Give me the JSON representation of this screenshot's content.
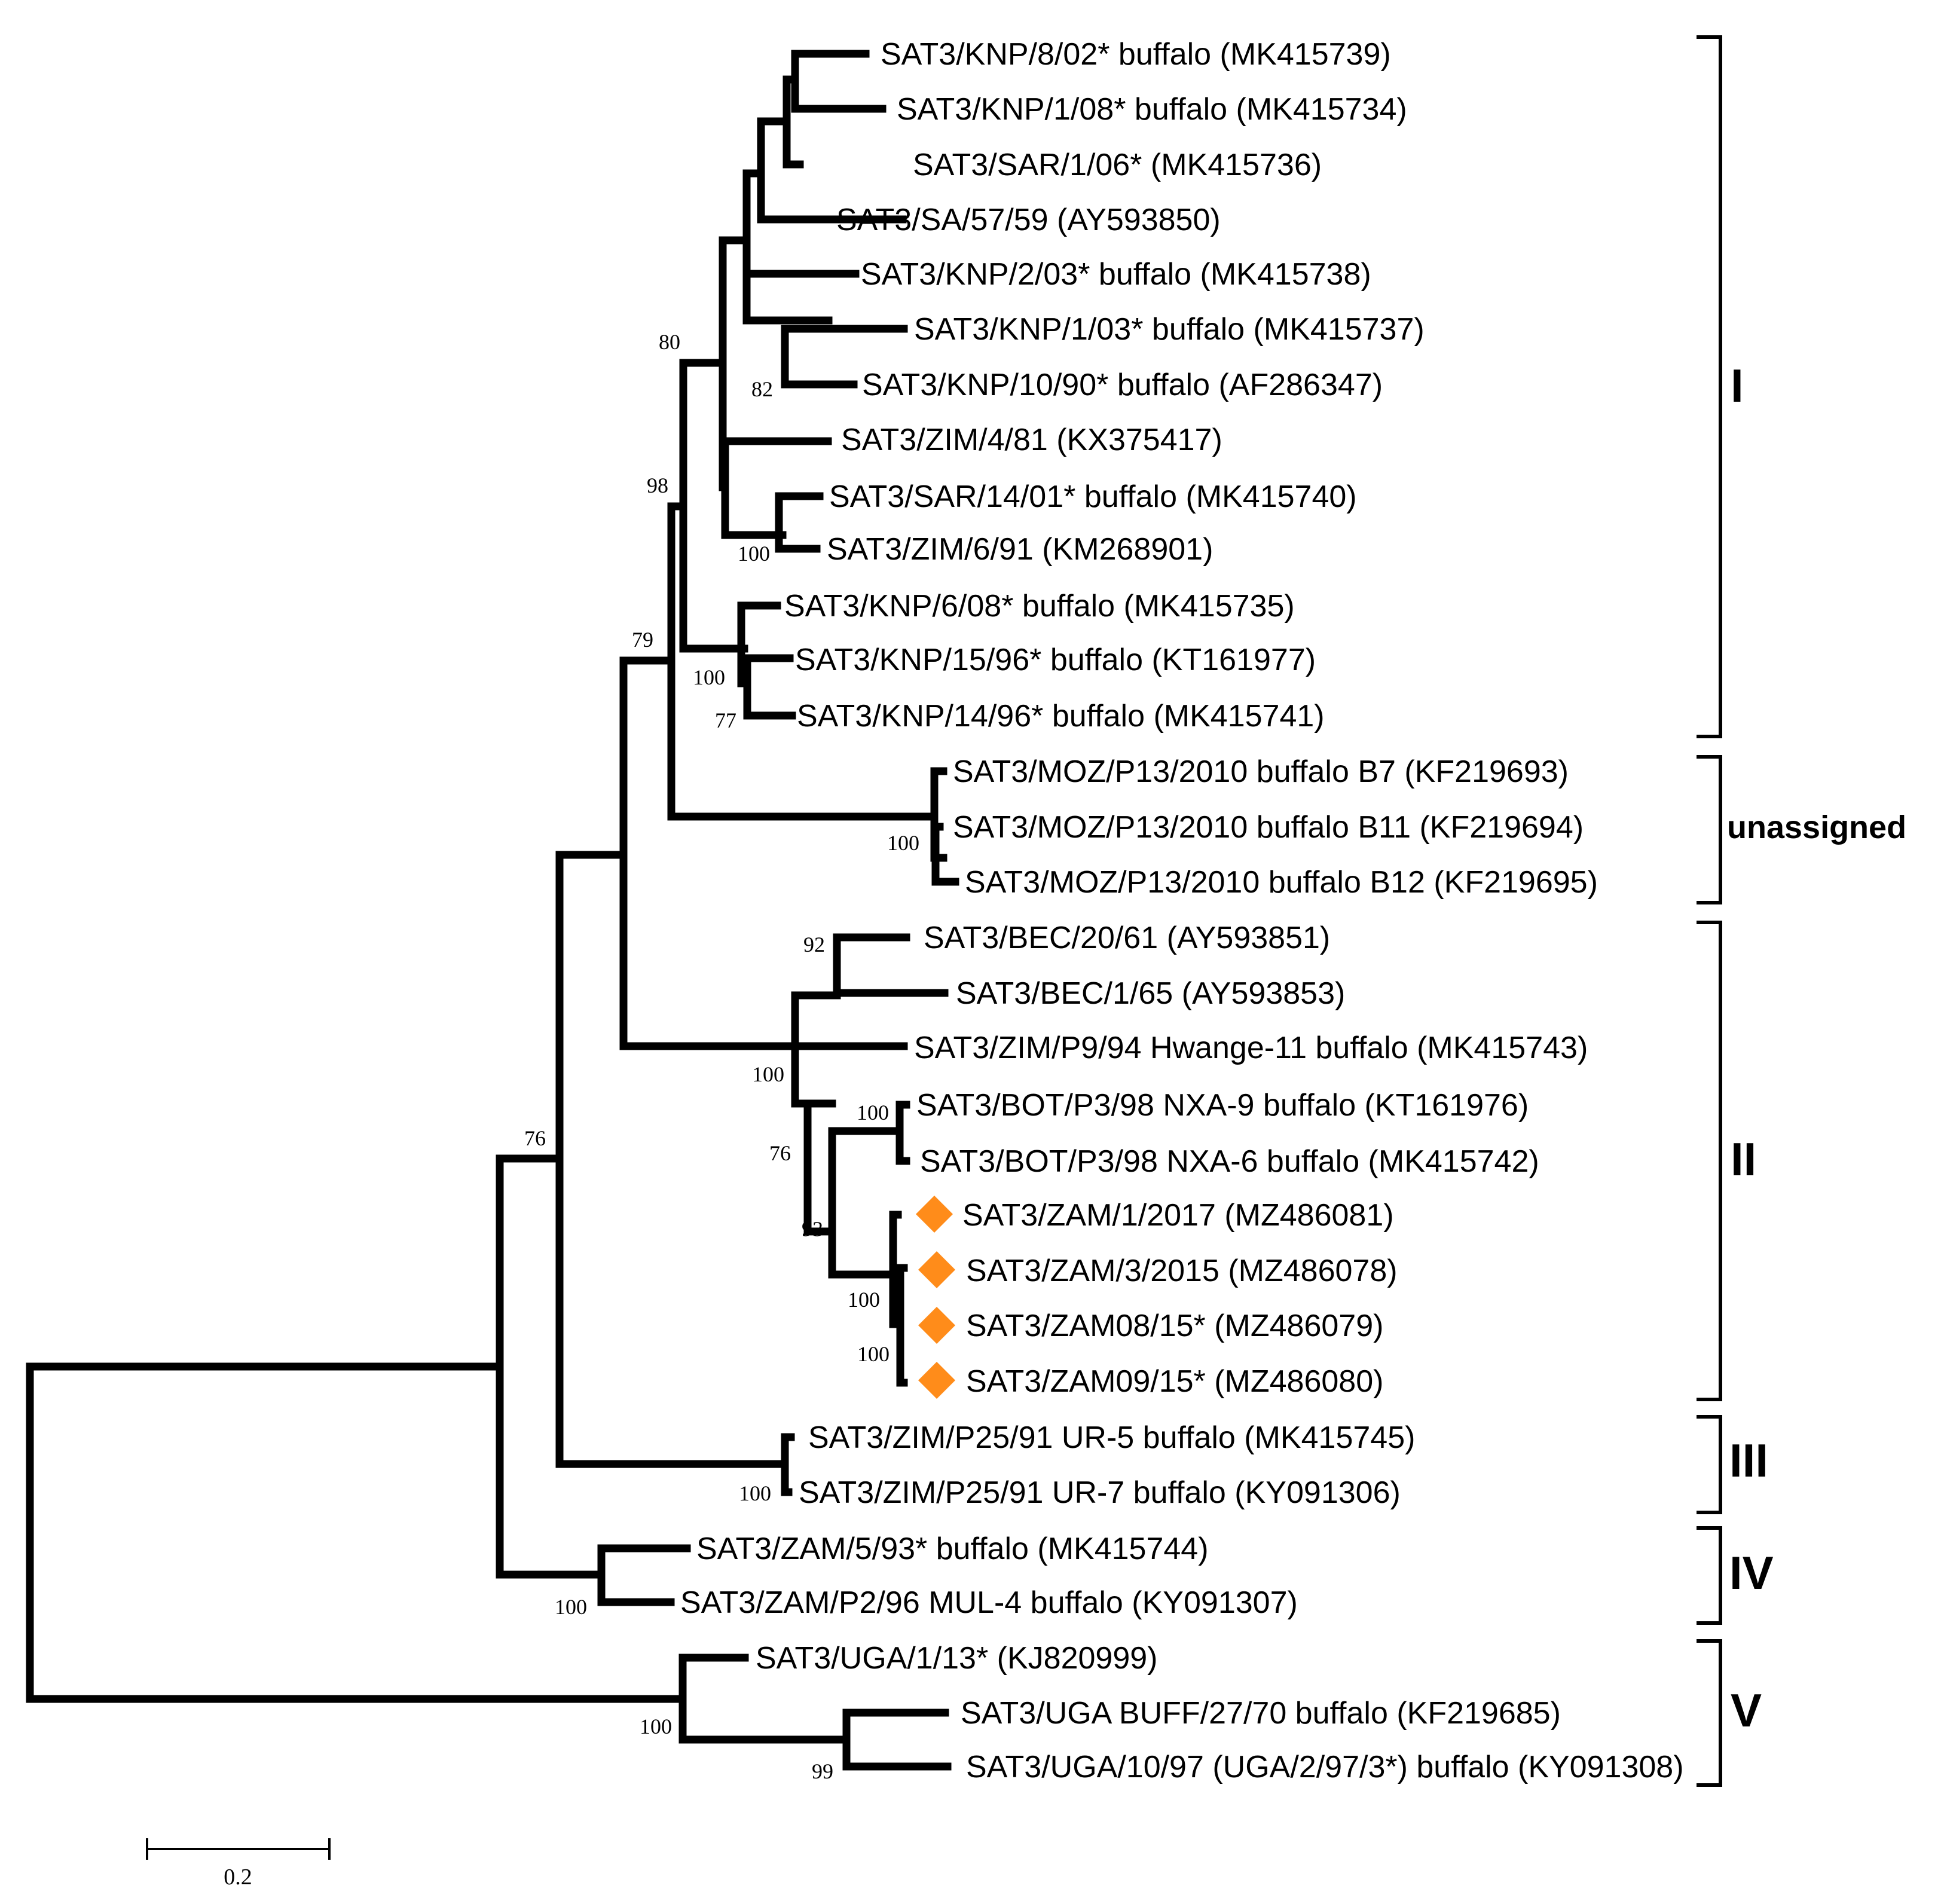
{
  "taxa": {
    "t1": "SAT3/KNP/8/02* buffalo (MK415739)",
    "t2": "SAT3/KNP/1/08* buffalo (MK415734)",
    "t3": "SAT3/SAR/1/06* (MK415736)",
    "t4": "SAT3/SA/57/59 (AY593850)",
    "t5": "SAT3/KNP/2/03* buffalo (MK415738)",
    "t6": "SAT3/KNP/1/03* buffalo (MK415737)",
    "t7": "SAT3/KNP/10/90* buffalo (AF286347)",
    "t8": "SAT3/ZIM/4/81 (KX375417)",
    "t9": "SAT3/SAR/14/01* buffalo (MK415740)",
    "t10": "SAT3/ZIM/6/91 (KM268901)",
    "t11": "SAT3/KNP/6/08* buffalo (MK415735)",
    "t12": "SAT3/KNP/15/96* buffalo (KT161977)",
    "t13": "SAT3/KNP/14/96* buffalo (MK415741)",
    "t14": "SAT3/MOZ/P13/2010 buffalo B7 (KF219693)",
    "t15": "SAT3/MOZ/P13/2010 buffalo B11 (KF219694)",
    "t16": "SAT3/MOZ/P13/2010 buffalo B12 (KF219695)",
    "t17": "SAT3/BEC/20/61 (AY593851)",
    "t18": "SAT3/BEC/1/65 (AY593853)",
    "t19": "SAT3/ZIM/P9/94 Hwange-11 buffalo (MK415743)",
    "t20": "SAT3/BOT/P3/98 NXA-9 buffalo (KT161976)",
    "t21": "SAT3/BOT/P3/98 NXA-6 buffalo (MK415742)",
    "t22": "SAT3/ZAM/1/2017 (MZ486081)",
    "t23": "SAT3/ZAM/3/2015 (MZ486078)",
    "t24": "SAT3/ZAM08/15* (MZ486079)",
    "t25": "SAT3/ZAM09/15* (MZ486080)",
    "t26": "SAT3/ZIM/P25/91 UR-5 buffalo (MK415745)",
    "t27": "SAT3/ZIM/P25/91 UR-7 buffalo (KY091306)",
    "t28": "SAT3/ZAM/5/93* buffalo (MK415744)",
    "t29": "SAT3/ZAM/P2/96 MUL-4 buffalo (KY091307)",
    "t30": "SAT3/UGA/1/13* (KJ820999)",
    "t31": "SAT3/UGA BUFF/27/70 buffalo (KF219685)",
    "t32": "SAT3/UGA/10/97 (UGA/2/97/3*) buffalo (KY091308)"
  },
  "bootstrap": {
    "b80": "80",
    "b82": "82",
    "b98": "98",
    "b100_zim": "100",
    "b79": "79",
    "b100_knp": "100",
    "b77": "77",
    "b100_moz": "100",
    "b92": "92",
    "b100_ii": "100",
    "b100_bot": "100",
    "b76_ii": "76",
    "b93": "93",
    "b100_zam1": "100",
    "b100_zam2": "100",
    "b100_iii": "100",
    "b76_root": "76",
    "b100_iv": "100",
    "b100_v": "100",
    "b99": "99"
  },
  "clades": {
    "c1": "I",
    "c_unassigned": "unassigned",
    "c2": "II",
    "c3": "III",
    "c4": "IV",
    "c5": "V"
  },
  "scale_bar": {
    "label": "0.2"
  },
  "colors": {
    "highlight_marker": "#ff8c1a"
  }
}
